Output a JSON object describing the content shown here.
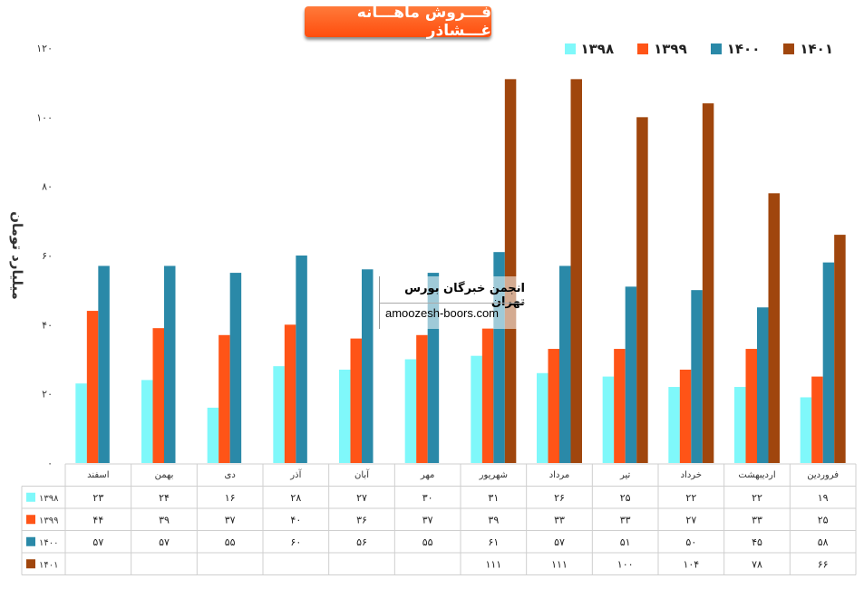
{
  "title": "فـــروش ماهـــانه غـــشاذر",
  "ylabel": "میلیارد تومان",
  "watermark": {
    "line1": "انجمن خبرگان بورس تهران",
    "line2": "amoozesh-boors.com"
  },
  "chart_data": {
    "type": "bar",
    "title": "فـــروش ماهـــانه غـــشاذر",
    "ylabel": "میلیارد تومان",
    "xlabel": "",
    "ylim": [
      0,
      120
    ],
    "yticks": [
      0,
      20,
      40,
      60,
      80,
      100,
      120
    ],
    "ytick_labels": [
      "۰",
      "۲۰",
      "۴۰",
      "۶۰",
      "۸۰",
      "۱۰۰",
      "۱۲۰"
    ],
    "grid": false,
    "legend_position": "top-right",
    "categories": [
      "فروردین",
      "اردیبهشت",
      "خرداد",
      "تیر",
      "مرداد",
      "شهریور",
      "مهر",
      "آبان",
      "آذر",
      "دی",
      "بهمن",
      "اسفند"
    ],
    "series": [
      {
        "name": "۱۳۹۸",
        "color": "#7ff8fa",
        "values": [
          19,
          22,
          22,
          25,
          26,
          31,
          30,
          27,
          28,
          16,
          24,
          23
        ],
        "labels": [
          "۱۹",
          "۲۲",
          "۲۲",
          "۲۵",
          "۲۶",
          "۳۱",
          "۳۰",
          "۲۷",
          "۲۸",
          "۱۶",
          "۲۴",
          "۲۳"
        ]
      },
      {
        "name": "۱۳۹۹",
        "color": "#ff5417",
        "values": [
          25,
          33,
          27,
          33,
          33,
          39,
          37,
          36,
          40,
          37,
          39,
          44
        ],
        "labels": [
          "۲۵",
          "۳۳",
          "۲۷",
          "۳۳",
          "۳۳",
          "۳۹",
          "۳۷",
          "۳۶",
          "۴۰",
          "۳۷",
          "۳۹",
          "۴۴"
        ]
      },
      {
        "name": "۱۴۰۰",
        "color": "#2a89a8",
        "values": [
          58,
          45,
          50,
          51,
          57,
          61,
          55,
          56,
          60,
          55,
          57,
          57
        ],
        "labels": [
          "۵۸",
          "۴۵",
          "۵۰",
          "۵۱",
          "۵۷",
          "۶۱",
          "۵۵",
          "۵۶",
          "۶۰",
          "۵۵",
          "۵۷",
          "۵۷"
        ]
      },
      {
        "name": "۱۴۰۱",
        "color": "#a0460d",
        "values": [
          66,
          78,
          104,
          100,
          111,
          111,
          null,
          null,
          null,
          null,
          null,
          null
        ],
        "labels": [
          "۶۶",
          "۷۸",
          "۱۰۴",
          "۱۰۰",
          "۱۱۱",
          "۱۱۱",
          "",
          "",
          "",
          "",
          "",
          ""
        ]
      }
    ]
  }
}
